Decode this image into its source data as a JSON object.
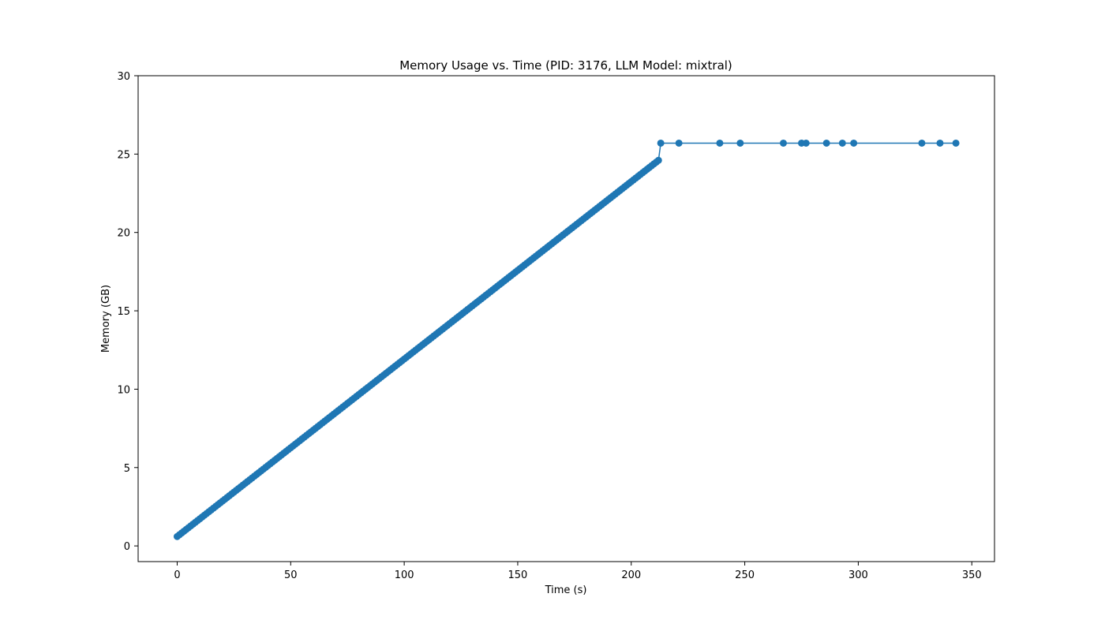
{
  "chart_data": {
    "type": "line",
    "title": "Memory Usage vs. Time (PID: 3176, LLM Model: mixtral)",
    "xlabel": "Time (s)",
    "ylabel": "Memory (GB)",
    "xlim": [
      -17.2,
      360
    ],
    "ylim": [
      -1,
      30
    ],
    "xticks": [
      0,
      50,
      100,
      150,
      200,
      250,
      300,
      350
    ],
    "yticks": [
      0,
      5,
      10,
      15,
      20,
      25,
      30
    ],
    "grid": false,
    "legend": "none",
    "series": [
      {
        "color": "#1f77b4",
        "marker": "circle",
        "ramp": {
          "x_start": 0,
          "x_end": 212,
          "step": 1,
          "y_start": 0.6,
          "y_end": 24.6
        },
        "points": [
          [
            213,
            25.7
          ],
          [
            221,
            25.7
          ],
          [
            239,
            25.7
          ],
          [
            248,
            25.7
          ],
          [
            267,
            25.7
          ],
          [
            275,
            25.7
          ],
          [
            277,
            25.7
          ],
          [
            286,
            25.7
          ],
          [
            293,
            25.7
          ],
          [
            298,
            25.7
          ],
          [
            328,
            25.7
          ],
          [
            336,
            25.7
          ],
          [
            343,
            25.7
          ]
        ]
      }
    ]
  }
}
